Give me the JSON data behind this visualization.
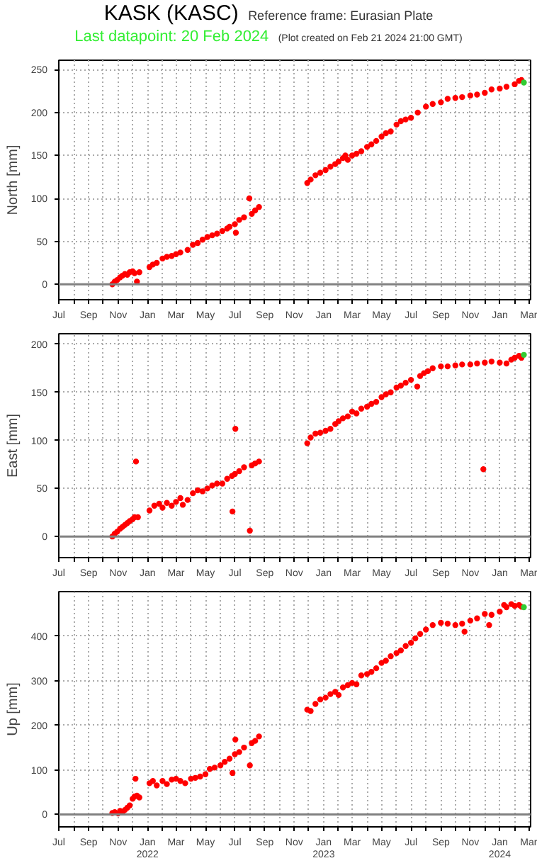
{
  "chart_data": [
    {
      "type": "scatter",
      "title": "KASK (KASC)",
      "subtitle": "Last datapoint: 20 Feb 2024",
      "annotations": [
        "Reference frame: Eurasian Plate",
        "(Plot created on Feb 21 2024 21:00 GMT)"
      ],
      "ylabel": "North [mm]",
      "marker": "circle",
      "grid": true,
      "xlim": [
        "2021-07-01",
        "2024-03-05"
      ],
      "ylim": [
        -18,
        261
      ],
      "yticks": [
        0,
        50,
        100,
        150,
        200,
        250
      ],
      "xticks": [
        {
          "value": "2021-07-01",
          "label": "Jul"
        },
        {
          "value": "2021-08-01",
          "label": null
        },
        {
          "value": "2021-09-01",
          "label": "Sep"
        },
        {
          "value": "2021-10-01",
          "label": null
        },
        {
          "value": "2021-11-01",
          "label": "Nov"
        },
        {
          "value": "2021-12-01",
          "label": null
        },
        {
          "value": "2022-01-01",
          "label": "Jan"
        },
        {
          "value": "2022-02-01",
          "label": null
        },
        {
          "value": "2022-03-01",
          "label": "Mar"
        },
        {
          "value": "2022-04-01",
          "label": null
        },
        {
          "value": "2022-05-01",
          "label": "May"
        },
        {
          "value": "2022-06-01",
          "label": null
        },
        {
          "value": "2022-07-01",
          "label": "Jul"
        },
        {
          "value": "2022-08-01",
          "label": null
        },
        {
          "value": "2022-09-01",
          "label": "Sep"
        },
        {
          "value": "2022-10-01",
          "label": null
        },
        {
          "value": "2022-11-01",
          "label": "Nov"
        },
        {
          "value": "2022-12-01",
          "label": null
        },
        {
          "value": "2023-01-01",
          "label": "Jan"
        },
        {
          "value": "2023-02-01",
          "label": null
        },
        {
          "value": "2023-03-01",
          "label": "Mar"
        },
        {
          "value": "2023-04-01",
          "label": null
        },
        {
          "value": "2023-05-01",
          "label": "May"
        },
        {
          "value": "2023-06-01",
          "label": null
        },
        {
          "value": "2023-07-01",
          "label": "Jul"
        },
        {
          "value": "2023-08-01",
          "label": null
        },
        {
          "value": "2023-09-01",
          "label": "Sep"
        },
        {
          "value": "2023-10-01",
          "label": null
        },
        {
          "value": "2023-11-01",
          "label": "Nov"
        },
        {
          "value": "2023-12-01",
          "label": null
        },
        {
          "value": "2024-01-01",
          "label": "Jan"
        },
        {
          "value": "2024-02-01",
          "label": null
        },
        {
          "value": "2024-03-01",
          "label": "Mar"
        }
      ],
      "ref_lines": [
        {
          "axis": "y",
          "value": 0,
          "color": "#808080"
        }
      ],
      "series": [
        {
          "color": "#ff0000",
          "x": [
            "2021-10-20",
            "2021-10-25",
            "2021-10-30",
            "2021-11-05",
            "2021-11-10",
            "2021-11-15",
            "2021-11-20",
            "2021-11-25",
            "2021-12-01",
            "2021-12-05",
            "2021-12-10",
            "2021-12-15",
            "2022-01-05",
            "2022-01-12",
            "2022-01-20",
            "2022-02-01",
            "2022-02-10",
            "2022-02-20",
            "2022-03-01",
            "2022-03-10",
            "2022-03-25",
            "2022-04-05",
            "2022-04-15",
            "2022-04-25",
            "2022-05-05",
            "2022-05-15",
            "2022-05-25",
            "2022-06-05",
            "2022-06-15",
            "2022-06-20",
            "2022-07-01",
            "2022-07-03",
            "2022-07-10",
            "2022-07-20",
            "2022-07-31",
            "2022-08-05",
            "2022-08-12",
            "2022-08-20",
            "2022-11-28",
            "2022-12-05",
            "2022-12-15",
            "2022-12-25",
            "2023-01-05",
            "2023-01-15",
            "2023-01-25",
            "2023-02-01",
            "2023-02-10",
            "2023-02-15",
            "2023-02-20",
            "2023-03-01",
            "2023-03-10",
            "2023-03-20",
            "2023-04-01",
            "2023-04-10",
            "2023-04-20",
            "2023-05-01",
            "2023-05-10",
            "2023-05-20",
            "2023-06-01",
            "2023-06-10",
            "2023-06-20",
            "2023-07-01",
            "2023-07-15",
            "2023-08-01",
            "2023-08-15",
            "2023-09-01",
            "2023-09-15",
            "2023-10-01",
            "2023-10-15",
            "2023-11-01",
            "2023-11-15",
            "2023-12-01",
            "2023-12-15",
            "2024-01-01",
            "2024-01-15",
            "2024-02-01",
            "2024-02-10",
            "2024-02-15"
          ],
          "values": [
            0,
            3,
            5,
            8,
            10,
            12,
            11,
            14,
            15,
            13,
            3,
            14,
            20,
            23,
            25,
            30,
            32,
            33,
            35,
            37,
            40,
            46,
            48,
            52,
            55,
            57,
            59,
            62,
            65,
            67,
            70,
            60,
            75,
            78,
            100,
            82,
            86,
            90,
            118,
            122,
            127,
            130,
            133,
            137,
            140,
            143,
            147,
            150,
            145,
            150,
            152,
            155,
            160,
            163,
            167,
            172,
            176,
            178,
            186,
            190,
            192,
            194,
            200,
            207,
            210,
            212,
            216,
            217,
            218,
            220,
            221,
            223,
            227,
            228,
            230,
            233,
            237,
            238
          ]
        },
        {
          "color": "#33cc33",
          "x": [
            "2024-02-20"
          ],
          "values": [
            235
          ]
        }
      ]
    },
    {
      "type": "scatter",
      "ylabel": "East [mm]",
      "marker": "circle",
      "grid": true,
      "xlim": [
        "2021-07-01",
        "2024-03-05"
      ],
      "ylim": [
        -22,
        211
      ],
      "yticks": [
        0,
        50,
        100,
        150,
        200
      ],
      "xticks": [
        {
          "value": "2021-07-01",
          "label": "Jul"
        },
        {
          "value": "2021-08-01",
          "label": null
        },
        {
          "value": "2021-09-01",
          "label": "Sep"
        },
        {
          "value": "2021-10-01",
          "label": null
        },
        {
          "value": "2021-11-01",
          "label": "Nov"
        },
        {
          "value": "2021-12-01",
          "label": null
        },
        {
          "value": "2022-01-01",
          "label": "Jan"
        },
        {
          "value": "2022-02-01",
          "label": null
        },
        {
          "value": "2022-03-01",
          "label": "Mar"
        },
        {
          "value": "2022-04-01",
          "label": null
        },
        {
          "value": "2022-05-01",
          "label": "May"
        },
        {
          "value": "2022-06-01",
          "label": null
        },
        {
          "value": "2022-07-01",
          "label": "Jul"
        },
        {
          "value": "2022-08-01",
          "label": null
        },
        {
          "value": "2022-09-01",
          "label": "Sep"
        },
        {
          "value": "2022-10-01",
          "label": null
        },
        {
          "value": "2022-11-01",
          "label": "Nov"
        },
        {
          "value": "2022-12-01",
          "label": null
        },
        {
          "value": "2023-01-01",
          "label": "Jan"
        },
        {
          "value": "2023-02-01",
          "label": null
        },
        {
          "value": "2023-03-01",
          "label": "Mar"
        },
        {
          "value": "2023-04-01",
          "label": null
        },
        {
          "value": "2023-05-01",
          "label": "May"
        },
        {
          "value": "2023-06-01",
          "label": null
        },
        {
          "value": "2023-07-01",
          "label": "Jul"
        },
        {
          "value": "2023-08-01",
          "label": null
        },
        {
          "value": "2023-09-01",
          "label": "Sep"
        },
        {
          "value": "2023-10-01",
          "label": null
        },
        {
          "value": "2023-11-01",
          "label": "Nov"
        },
        {
          "value": "2023-12-01",
          "label": null
        },
        {
          "value": "2024-01-01",
          "label": "Jan"
        },
        {
          "value": "2024-02-01",
          "label": null
        },
        {
          "value": "2024-03-01",
          "label": "Mar"
        }
      ],
      "ref_lines": [
        {
          "axis": "y",
          "value": 0,
          "color": "#808080"
        }
      ],
      "series": [
        {
          "color": "#ff0000",
          "x": [
            "2021-10-20",
            "2021-10-25",
            "2021-10-30",
            "2021-11-05",
            "2021-11-10",
            "2021-11-15",
            "2021-11-20",
            "2021-11-25",
            "2021-12-01",
            "2021-12-05",
            "2021-12-08",
            "2021-12-12",
            "2022-01-05",
            "2022-01-15",
            "2022-01-25",
            "2022-02-01",
            "2022-02-10",
            "2022-02-20",
            "2022-03-01",
            "2022-03-10",
            "2022-03-15",
            "2022-03-25",
            "2022-04-05",
            "2022-04-15",
            "2022-04-25",
            "2022-05-05",
            "2022-05-15",
            "2022-05-25",
            "2022-06-05",
            "2022-06-15",
            "2022-06-25",
            "2022-06-26",
            "2022-07-01",
            "2022-07-02",
            "2022-07-10",
            "2022-07-20",
            "2022-08-01",
            "2022-08-05",
            "2022-08-12",
            "2022-08-20",
            "2022-11-28",
            "2022-12-05",
            "2022-12-15",
            "2022-12-25",
            "2023-01-05",
            "2023-01-15",
            "2023-01-25",
            "2023-02-01",
            "2023-02-10",
            "2023-02-20",
            "2023-03-01",
            "2023-03-10",
            "2023-03-20",
            "2023-04-01",
            "2023-04-10",
            "2023-04-20",
            "2023-05-01",
            "2023-05-10",
            "2023-05-20",
            "2023-06-01",
            "2023-06-10",
            "2023-06-20",
            "2023-07-01",
            "2023-07-14",
            "2023-07-20",
            "2023-07-28",
            "2023-08-05",
            "2023-08-15",
            "2023-09-01",
            "2023-09-15",
            "2023-10-01",
            "2023-10-15",
            "2023-11-01",
            "2023-11-15",
            "2023-11-28",
            "2023-12-01",
            "2023-12-15",
            "2024-01-01",
            "2024-01-15",
            "2024-01-25",
            "2024-02-01",
            "2024-02-10",
            "2024-02-15"
          ],
          "values": [
            0,
            3,
            5,
            8,
            10,
            12,
            14,
            16,
            18,
            20,
            78,
            20,
            27,
            32,
            34,
            30,
            35,
            32,
            36,
            40,
            33,
            38,
            45,
            48,
            47,
            50,
            53,
            55,
            55,
            60,
            63,
            26,
            65,
            112,
            68,
            72,
            6,
            74,
            76,
            78,
            97,
            103,
            107,
            108,
            110,
            112,
            117,
            120,
            123,
            125,
            130,
            128,
            133,
            135,
            138,
            140,
            145,
            148,
            150,
            155,
            157,
            160,
            163,
            156,
            167,
            170,
            172,
            175,
            177,
            177,
            178,
            179,
            179,
            180,
            70,
            181,
            182,
            181,
            180,
            184,
            186,
            188,
            186
          ]
        },
        {
          "color": "#33cc33",
          "x": [
            "2024-02-20"
          ],
          "values": [
            189
          ]
        }
      ]
    },
    {
      "type": "scatter",
      "ylabel": "Up [mm]",
      "marker": "circle",
      "grid": true,
      "xlim": [
        "2021-07-01",
        "2024-03-05"
      ],
      "ylim": [
        -28,
        500
      ],
      "yticks": [
        0,
        100,
        200,
        300,
        400
      ],
      "xticks": [
        {
          "value": "2021-07-01",
          "label": "Jul"
        },
        {
          "value": "2021-08-01",
          "label": null
        },
        {
          "value": "2021-09-01",
          "label": "Sep"
        },
        {
          "value": "2021-10-01",
          "label": null
        },
        {
          "value": "2021-11-01",
          "label": "Nov"
        },
        {
          "value": "2021-12-01",
          "label": null
        },
        {
          "value": "2022-01-01",
          "label": "Jan\n2022"
        },
        {
          "value": "2022-02-01",
          "label": null
        },
        {
          "value": "2022-03-01",
          "label": "Mar"
        },
        {
          "value": "2022-04-01",
          "label": null
        },
        {
          "value": "2022-05-01",
          "label": "May"
        },
        {
          "value": "2022-06-01",
          "label": null
        },
        {
          "value": "2022-07-01",
          "label": "Jul"
        },
        {
          "value": "2022-08-01",
          "label": null
        },
        {
          "value": "2022-09-01",
          "label": "Sep"
        },
        {
          "value": "2022-10-01",
          "label": null
        },
        {
          "value": "2022-11-01",
          "label": "Nov"
        },
        {
          "value": "2022-12-01",
          "label": null
        },
        {
          "value": "2023-01-01",
          "label": "Jan\n2023"
        },
        {
          "value": "2023-02-01",
          "label": null
        },
        {
          "value": "2023-03-01",
          "label": "Mar"
        },
        {
          "value": "2023-04-01",
          "label": null
        },
        {
          "value": "2023-05-01",
          "label": "May"
        },
        {
          "value": "2023-06-01",
          "label": null
        },
        {
          "value": "2023-07-01",
          "label": "Jul"
        },
        {
          "value": "2023-08-01",
          "label": null
        },
        {
          "value": "2023-09-01",
          "label": "Sep"
        },
        {
          "value": "2023-10-01",
          "label": null
        },
        {
          "value": "2023-11-01",
          "label": "Nov"
        },
        {
          "value": "2023-12-01",
          "label": null
        },
        {
          "value": "2024-01-01",
          "label": "Jan\n2024"
        },
        {
          "value": "2024-02-01",
          "label": null
        },
        {
          "value": "2024-03-01",
          "label": "Mar"
        }
      ],
      "ref_lines": [
        {
          "axis": "y",
          "value": 0,
          "color": "#808080"
        }
      ],
      "series": [
        {
          "color": "#ff0000",
          "x": [
            "2021-10-20",
            "2021-10-25",
            "2021-11-01",
            "2021-11-05",
            "2021-11-10",
            "2021-11-15",
            "2021-11-20",
            "2021-11-25",
            "2021-12-01",
            "2021-12-05",
            "2021-12-07",
            "2021-12-10",
            "2021-12-15",
            "2022-01-05",
            "2022-01-12",
            "2022-01-20",
            "2022-02-01",
            "2022-02-10",
            "2022-02-20",
            "2022-03-01",
            "2022-03-10",
            "2022-03-20",
            "2022-04-01",
            "2022-04-10",
            "2022-04-20",
            "2022-05-01",
            "2022-05-10",
            "2022-05-20",
            "2022-06-01",
            "2022-06-10",
            "2022-06-20",
            "2022-06-26",
            "2022-07-01",
            "2022-07-02",
            "2022-07-10",
            "2022-07-20",
            "2022-08-01",
            "2022-08-05",
            "2022-08-12",
            "2022-08-20",
            "2022-11-28",
            "2022-12-05",
            "2022-12-15",
            "2022-12-25",
            "2023-01-05",
            "2023-01-15",
            "2023-01-25",
            "2023-02-01",
            "2023-02-10",
            "2023-02-20",
            "2023-03-01",
            "2023-03-10",
            "2023-03-20",
            "2023-04-01",
            "2023-04-10",
            "2023-04-20",
            "2023-05-01",
            "2023-05-10",
            "2023-05-20",
            "2023-06-01",
            "2023-06-10",
            "2023-06-20",
            "2023-07-01",
            "2023-07-10",
            "2023-07-20",
            "2023-08-01",
            "2023-08-15",
            "2023-09-01",
            "2023-09-15",
            "2023-10-01",
            "2023-10-15",
            "2023-10-20",
            "2023-11-01",
            "2023-11-15",
            "2023-12-01",
            "2023-12-10",
            "2023-12-15",
            "2024-01-01",
            "2024-01-10",
            "2024-01-15",
            "2024-01-25",
            "2024-02-01",
            "2024-02-10",
            "2024-02-15"
          ],
          "values": [
            3,
            5,
            2,
            8,
            5,
            10,
            15,
            20,
            35,
            40,
            80,
            42,
            38,
            70,
            75,
            65,
            75,
            68,
            78,
            80,
            75,
            70,
            80,
            82,
            85,
            90,
            102,
            105,
            110,
            118,
            125,
            93,
            135,
            168,
            140,
            150,
            110,
            160,
            165,
            175,
            235,
            232,
            248,
            258,
            262,
            270,
            275,
            268,
            285,
            290,
            295,
            292,
            312,
            315,
            320,
            328,
            340,
            345,
            355,
            362,
            368,
            378,
            385,
            395,
            405,
            415,
            425,
            430,
            428,
            425,
            428,
            410,
            435,
            440,
            450,
            425,
            448,
            455,
            470,
            465,
            472,
            468,
            470,
            466
          ]
        },
        {
          "color": "#33cc33",
          "x": [
            "2024-02-20"
          ],
          "values": [
            465
          ]
        }
      ]
    }
  ]
}
